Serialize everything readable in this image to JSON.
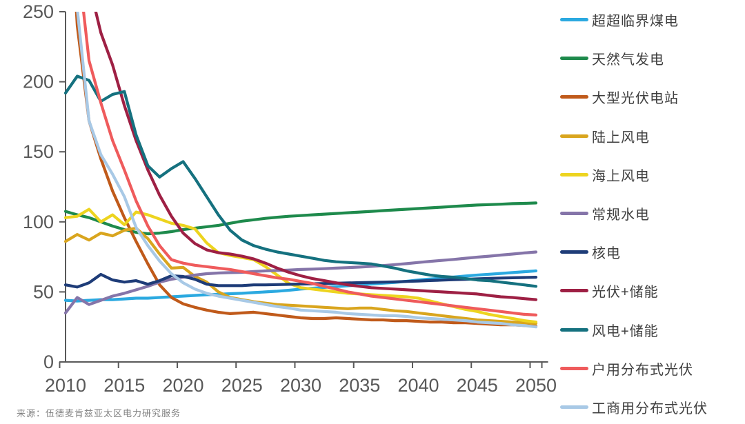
{
  "source": {
    "label": "来源：伍德麦肯兹亚太区电力研究服务"
  },
  "axis_color": "#595959",
  "chart_data": {
    "type": "line",
    "title": "",
    "xlabel": "",
    "ylabel": "",
    "x_start": 2010,
    "x_end": 2050,
    "x_step": 1,
    "xticks": [
      2010,
      2015,
      2020,
      2025,
      2030,
      2035,
      2040,
      2045,
      2050
    ],
    "ylim": [
      0,
      250
    ],
    "yticks": [
      0,
      50,
      100,
      150,
      200,
      250
    ],
    "grid": false,
    "legend_position": "right",
    "series": [
      {
        "name": "超超临界煤电",
        "color": "#2BA9E0",
        "values": [
          44,
          43.5,
          44,
          44.5,
          44.5,
          45,
          45.5,
          45.5,
          46,
          46.5,
          47,
          47.5,
          48,
          48.3,
          48.7,
          49,
          49.5,
          50,
          50.5,
          51.2,
          52,
          52.6,
          53.2,
          53.8,
          54.4,
          55,
          55.6,
          56.2,
          56.8,
          57.6,
          58.5,
          59.2,
          59.9,
          60.6,
          61.3,
          62,
          62.6,
          63.2,
          63.8,
          64.4,
          65
        ]
      },
      {
        "name": "天然气发电",
        "color": "#1E8A4C",
        "values": [
          107.5,
          105,
          103,
          100,
          97,
          94.5,
          92.5,
          91.5,
          92,
          93,
          94.5,
          95.5,
          96.5,
          97.5,
          99,
          100.5,
          101.5,
          102.5,
          103.3,
          104,
          104.5,
          105,
          105.5,
          106,
          106.5,
          107,
          107.5,
          108,
          108.5,
          109,
          109.5,
          110,
          110.5,
          111,
          111.5,
          112,
          112.3,
          112.6,
          113,
          113.2,
          113.5
        ]
      },
      {
        "name": "大型光伏电站",
        "color": "#C05A1A",
        "values": [
          380,
          240,
          172,
          145,
          122,
          103,
          86,
          70,
          55,
          46,
          41.5,
          39,
          37,
          35.5,
          34.5,
          35,
          35.5,
          34.5,
          33.5,
          32.5,
          31.5,
          31,
          31,
          31.5,
          31,
          30.5,
          30,
          30,
          29.5,
          29.5,
          29,
          28.5,
          28.5,
          28,
          28,
          27.5,
          27,
          26.5,
          26.5,
          26,
          25.5
        ]
      },
      {
        "name": "陆上风电",
        "color": "#D9A51E",
        "values": [
          86,
          91,
          87,
          92,
          90,
          94,
          95.5,
          88,
          77,
          67,
          67.5,
          61,
          57,
          50,
          46,
          44.5,
          43,
          42,
          41,
          40.5,
          40,
          39.5,
          39,
          38.5,
          38,
          38.5,
          38.5,
          37.5,
          36.5,
          36,
          35,
          34,
          33,
          32,
          31,
          30,
          29.5,
          29,
          28.5,
          28,
          27.5
        ]
      },
      {
        "name": "海上风电",
        "color": "#EDD41F",
        "values": [
          103,
          104,
          109,
          100,
          105,
          98,
          107,
          105,
          102,
          99,
          97.5,
          95,
          85,
          78,
          76,
          74.5,
          73,
          68,
          62,
          56,
          53,
          52,
          51,
          50,
          49,
          48.5,
          48,
          47.5,
          47,
          46.5,
          45.5,
          43.5,
          41.5,
          39.5,
          37.5,
          36,
          34,
          32.5,
          31,
          29.5,
          28.5
        ]
      },
      {
        "name": "常规水电",
        "color": "#8575A9",
        "values": [
          35,
          46,
          41,
          44,
          47,
          49,
          51.5,
          54,
          57,
          59,
          60.5,
          62,
          63,
          63.5,
          63.8,
          64,
          64.5,
          65,
          65.3,
          65.6,
          66,
          66.3,
          66.6,
          67,
          67.3,
          67.7,
          68.2,
          68.8,
          69.5,
          70.2,
          71,
          71.8,
          72.5,
          73.2,
          74,
          74.8,
          75.5,
          76.3,
          77,
          77.8,
          78.5
        ]
      },
      {
        "name": "核电",
        "color": "#1E3C78",
        "values": [
          55,
          53.5,
          56.5,
          62.5,
          58.5,
          57,
          58,
          55.5,
          58,
          61.5,
          61,
          59,
          55.5,
          54.5,
          54.5,
          54.5,
          55,
          55,
          55.2,
          55.4,
          55.6,
          55.8,
          56,
          56.2,
          56.4,
          56.6,
          56.8,
          57,
          57.2,
          57.5,
          57.8,
          58.1,
          58.4,
          58.7,
          59,
          59.3,
          59.6,
          59.9,
          60.1,
          60.3,
          60.5
        ]
      },
      {
        "name": "光伏+储能",
        "color": "#9E2044",
        "values": [
          420,
          330,
          270,
          235,
          212,
          183,
          158,
          137,
          119,
          104,
          92,
          84.5,
          80,
          78,
          77,
          75.5,
          73.5,
          70.5,
          67,
          64,
          61.5,
          59.5,
          58,
          56.5,
          55,
          54,
          53,
          52.5,
          52,
          51.5,
          51,
          50.5,
          50,
          49.5,
          49,
          48.5,
          47.5,
          46.5,
          46,
          45.2,
          44.5
        ]
      },
      {
        "name": "风电+储能",
        "color": "#15717F",
        "values": [
          192,
          204,
          201,
          186,
          191,
          193,
          162,
          140,
          132,
          138,
          143,
          131,
          118,
          105,
          94,
          87,
          83,
          80.5,
          78.5,
          77,
          75.5,
          74,
          72.5,
          71.5,
          71,
          70.5,
          70,
          68.5,
          67,
          65,
          63.5,
          62,
          61,
          60.5,
          59.5,
          58.5,
          58,
          57,
          56,
          55,
          54
        ]
      },
      {
        "name": "户用分布式光伏",
        "color": "#EF5B5C",
        "values": [
          500,
          290,
          215,
          185,
          158,
          137,
          115,
          97,
          83,
          73,
          70.5,
          69,
          68,
          67,
          66,
          64.5,
          63,
          61.5,
          60,
          59,
          57.5,
          56,
          54,
          52,
          50,
          48.5,
          47,
          46,
          45,
          44,
          43,
          42,
          41,
          40,
          39,
          38,
          37,
          36,
          35,
          34,
          33.5
        ]
      },
      {
        "name": "工商用分布式光伏",
        "color": "#A8C9E6",
        "values": [
          430,
          252,
          172,
          148,
          134,
          118,
          96,
          83,
          72,
          63,
          56.5,
          52,
          49,
          47,
          45.5,
          44,
          42.5,
          41,
          39.5,
          38.5,
          37,
          36.5,
          36,
          35.5,
          34.5,
          34,
          33.5,
          33,
          33,
          32.5,
          31.5,
          31,
          30.5,
          30,
          29.5,
          28.5,
          28,
          27.5,
          26.5,
          26,
          25
        ]
      }
    ]
  }
}
